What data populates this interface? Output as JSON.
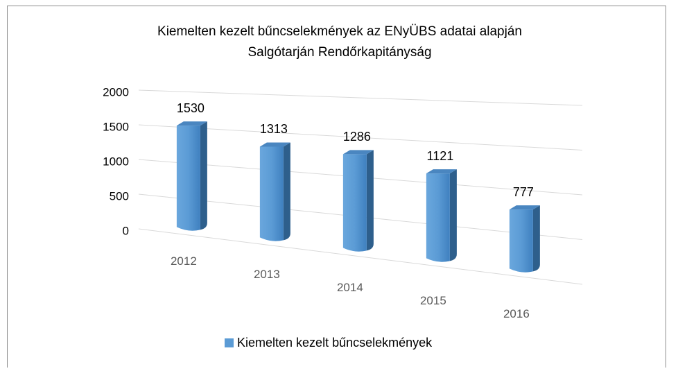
{
  "chart_data": {
    "type": "bar3d",
    "title": "Kiemelten kezelt bűncselekmények az ENyÜBS adatai alapján",
    "subtitle": "Salgótarján Rendőrkapitányság",
    "categories": [
      "2012",
      "2013",
      "2014",
      "2015",
      "2016"
    ],
    "series": [
      {
        "name": "Kiemelten kezelt bűncselekmények",
        "color": "#5b9bd5",
        "values": [
          1530,
          1313,
          1286,
          1121,
          777
        ]
      }
    ],
    "ylim": [
      0,
      2000
    ],
    "yticks": [
      0,
      500,
      1000,
      1500,
      2000
    ],
    "grid": true,
    "legend": "bottom"
  }
}
